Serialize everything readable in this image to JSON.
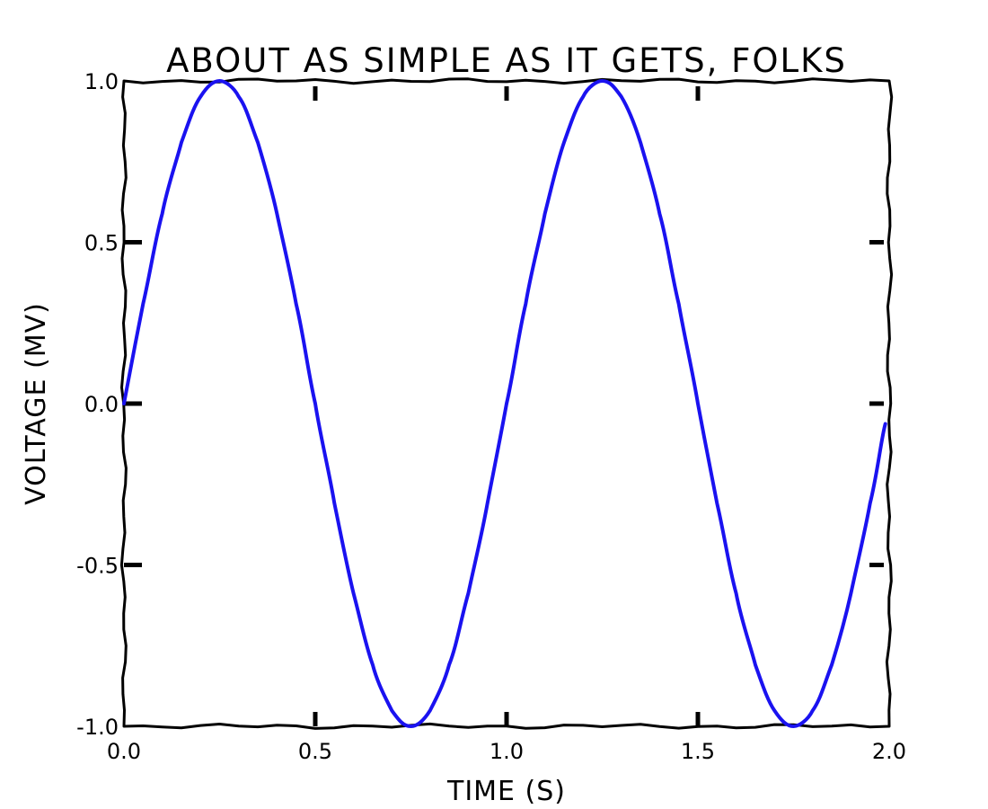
{
  "chart_data": {
    "type": "line",
    "title": "ABOUT AS SIMPLE AS IT GETS, FOLKS",
    "xlabel": "TIME (S)",
    "ylabel": "VOLTAGE (MV)",
    "xlim": [
      0.0,
      2.0
    ],
    "ylim": [
      -1.0,
      1.0
    ],
    "xticks": [
      "0.0",
      "0.5",
      "1.0",
      "1.5",
      "2.0"
    ],
    "xtick_values": [
      0.0,
      0.5,
      1.0,
      1.5,
      2.0
    ],
    "yticks": [
      "-1.0",
      "-0.5",
      "0.0",
      "0.5",
      "1.0"
    ],
    "ytick_values": [
      -1.0,
      -0.5,
      0.0,
      0.5,
      1.0
    ],
    "grid": false,
    "style": "xkcd hand-drawn",
    "series": [
      {
        "color": "#1a12f0",
        "x": [
          0.0,
          0.05,
          0.1,
          0.15,
          0.2,
          0.25,
          0.3,
          0.35,
          0.4,
          0.45,
          0.5,
          0.55,
          0.6,
          0.65,
          0.7,
          0.75,
          0.8,
          0.85,
          0.9,
          0.95,
          1.0,
          1.05,
          1.1,
          1.15,
          1.2,
          1.25,
          1.3,
          1.35,
          1.4,
          1.45,
          1.5,
          1.55,
          1.6,
          1.65,
          1.7,
          1.75,
          1.8,
          1.85,
          1.9,
          1.95,
          1.99
        ],
        "values": [
          0.0,
          0.309,
          0.588,
          0.809,
          0.951,
          1.0,
          0.951,
          0.809,
          0.588,
          0.309,
          0.0,
          -0.309,
          -0.588,
          -0.809,
          -0.951,
          -1.0,
          -0.951,
          -0.809,
          -0.588,
          -0.309,
          0.0,
          0.309,
          0.588,
          0.809,
          0.951,
          1.0,
          0.951,
          0.809,
          0.588,
          0.309,
          0.0,
          -0.309,
          -0.588,
          -0.809,
          -0.951,
          -1.0,
          -0.951,
          -0.809,
          -0.588,
          -0.309,
          -0.063
        ]
      }
    ]
  }
}
